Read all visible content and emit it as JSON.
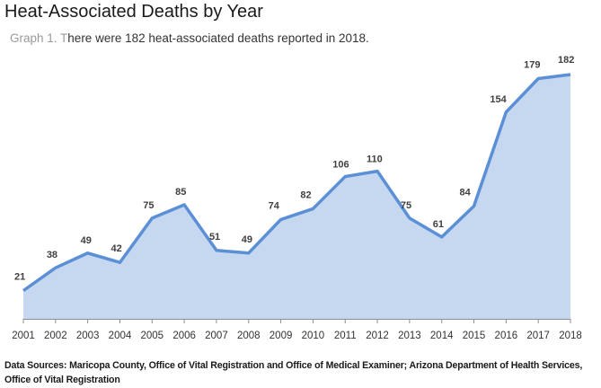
{
  "header": {
    "title": "Heat-Associated Deaths by Year",
    "subtitle_prefix": "Graph 1. T",
    "subtitle_rest": "here were 182 heat-associated deaths reported in 2018."
  },
  "footer": {
    "source": "Data Sources: Maricopa County, Office of Vital Registration and Office of Medical Examiner; Arizona Department of Health Services, Office of Vital Registration"
  },
  "colors": {
    "line": "#5b8fd6",
    "fill": "#c6d8f0",
    "axis": "#8c8c8c"
  },
  "chart_data": {
    "type": "area",
    "title": "Heat-Associated Deaths by Year",
    "xlabel": "",
    "ylabel": "",
    "categories": [
      "2001",
      "2002",
      "2003",
      "2004",
      "2005",
      "2006",
      "2007",
      "2008",
      "2009",
      "2010",
      "2011",
      "2012",
      "2013",
      "2014",
      "2015",
      "2016",
      "2017",
      "2018"
    ],
    "series": [
      {
        "name": "Heat-associated deaths",
        "values": [
          21,
          38,
          49,
          42,
          75,
          85,
          51,
          49,
          74,
          82,
          106,
          110,
          75,
          61,
          84,
          154,
          179,
          182
        ]
      }
    ],
    "ylim": [
      0,
      182
    ],
    "grid": false,
    "legend": "none",
    "data_labels": true
  }
}
